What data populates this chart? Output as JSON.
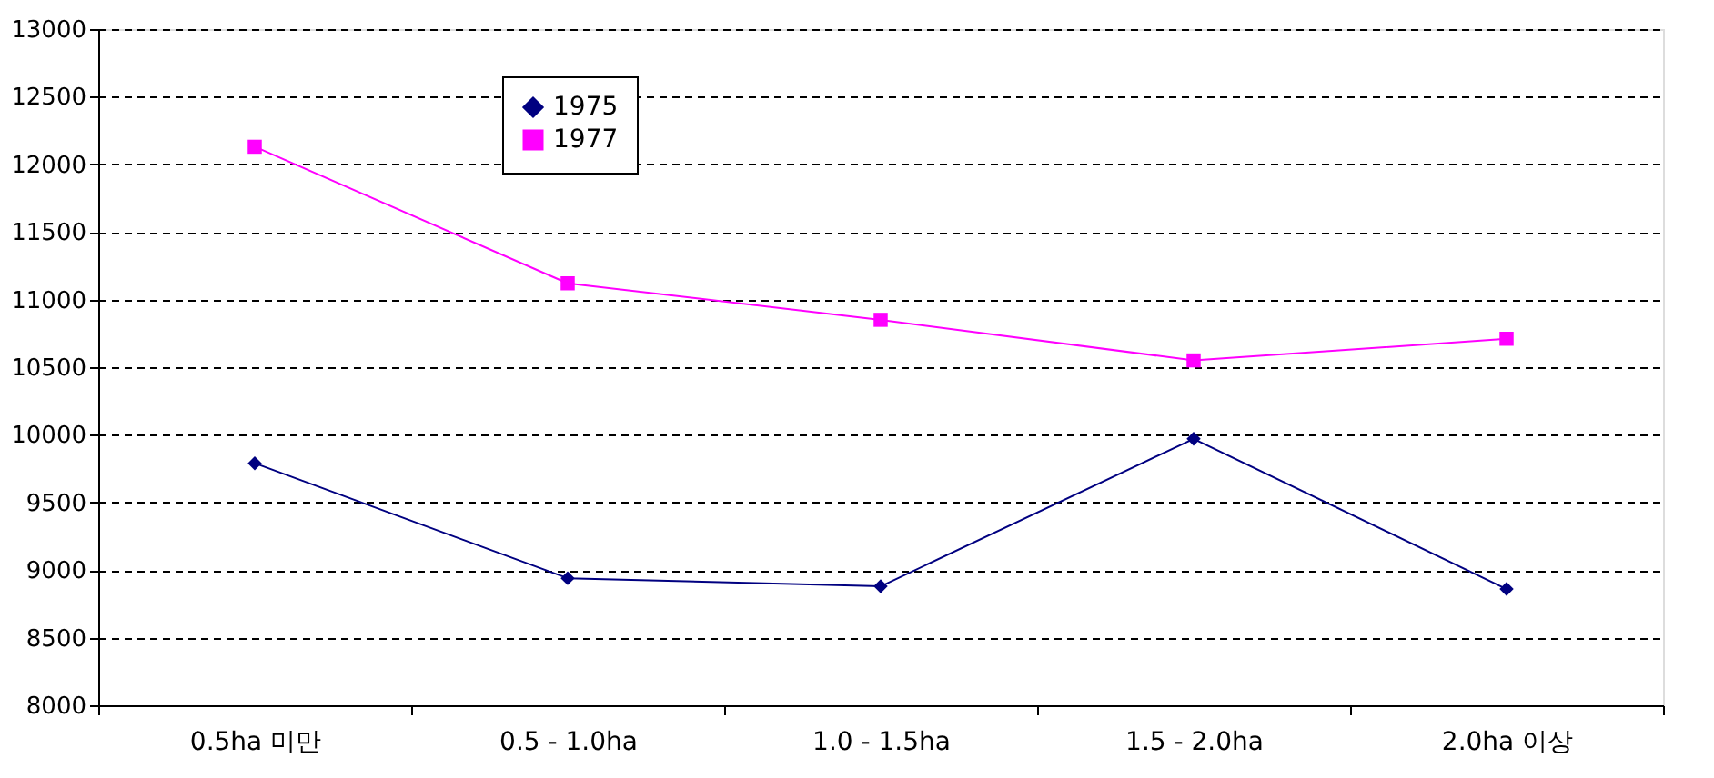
{
  "chart_data": {
    "type": "line",
    "categories": [
      "0.5ha  미만",
      "0.5 - 1.0ha",
      "1.0 - 1.5ha",
      "1.5 - 2.0ha",
      "2.0ha  이상"
    ],
    "series": [
      {
        "name": "1975",
        "color": "#000080",
        "marker": "diamond",
        "values": [
          9790,
          8940,
          8880,
          9970,
          8860
        ]
      },
      {
        "name": "1977",
        "color": "#ff00ff",
        "marker": "square",
        "values": [
          12130,
          11120,
          10850,
          10550,
          10710
        ]
      }
    ],
    "ylim": [
      8000,
      13000
    ],
    "yticks": [
      8000,
      8500,
      9000,
      9500,
      10000,
      10500,
      11000,
      11500,
      12000,
      12500,
      13000
    ],
    "grid": "y",
    "legend": "top left",
    "line_style": "solid"
  }
}
